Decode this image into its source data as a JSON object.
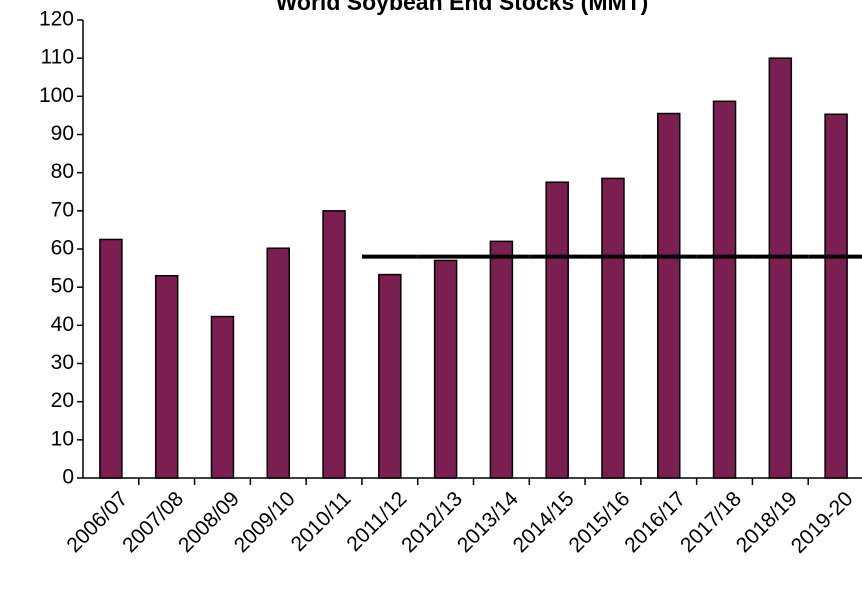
{
  "chart_data": {
    "type": "bar",
    "title": "World Soybean End Stocks (MMT)",
    "categories": [
      "2006/07",
      "2007/08",
      "2008/09",
      "2009/10",
      "2010/11",
      "2011/12",
      "2012/13",
      "2013/14",
      "2014/15",
      "2015/16",
      "2016/17",
      "2017/18",
      "2018/19",
      "2019-20"
    ],
    "values": [
      62.5,
      53,
      42.3,
      60.2,
      70,
      53.3,
      57,
      62,
      77.5,
      78.5,
      95.5,
      98.7,
      110,
      95.3
    ],
    "color": "#7b1f52",
    "reference_line": {
      "values": [
        null,
        null,
        null,
        null,
        null,
        58,
        58,
        58,
        58,
        58,
        58,
        58,
        58,
        58
      ],
      "color": "#000000"
    },
    "ylim": [
      0,
      120
    ],
    "yticks": [
      0,
      10,
      20,
      30,
      40,
      50,
      60,
      70,
      80,
      90,
      100,
      110,
      120
    ],
    "grid": false
  }
}
